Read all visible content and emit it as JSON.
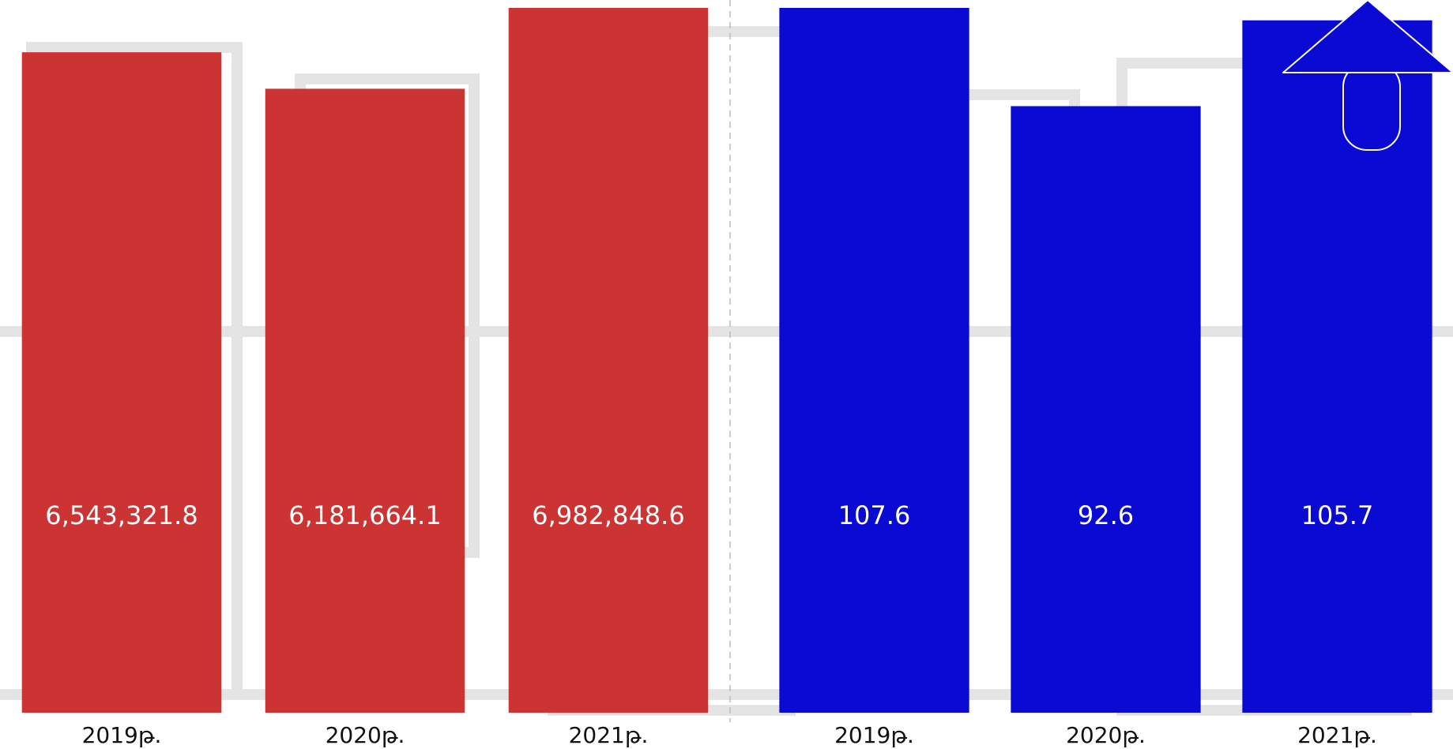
{
  "chart_data": [
    {
      "type": "bar",
      "categories": [
        "2019թ.",
        "2020թ.",
        "2021թ."
      ],
      "values": [
        6543321.8,
        6181664.1,
        6982848.6
      ],
      "value_labels": [
        "6,543,321.8",
        "6,181,664.1",
        "6,982,848.6"
      ],
      "color": "#cc3333"
    },
    {
      "type": "bar",
      "categories": [
        "2019թ.",
        "2020թ.",
        "2021թ."
      ],
      "values": [
        107.6,
        92.6,
        105.7
      ],
      "color": "#0a0ad2"
    }
  ]
}
